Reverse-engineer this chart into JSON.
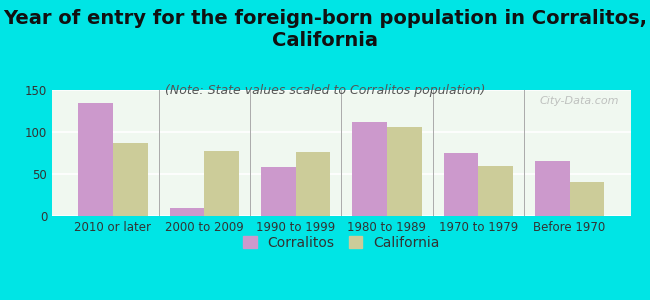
{
  "title": "Year of entry for the foreign-born population in Corralitos,\nCalifornia",
  "subtitle": "(Note: State values scaled to Corralitos population)",
  "categories": [
    "2010 or later",
    "2000 to 2009",
    "1990 to 1999",
    "1980 to 1989",
    "1970 to 1979",
    "Before 1970"
  ],
  "corralitos_values": [
    134,
    10,
    58,
    112,
    75,
    65
  ],
  "california_values": [
    87,
    77,
    76,
    106,
    59,
    40
  ],
  "corralitos_color": "#cc99cc",
  "california_color": "#cccc99",
  "background_color": "#00e5e5",
  "plot_bg_color_top": "#f0f8f0",
  "plot_bg_color_bottom": "#f8fff8",
  "ylim": [
    0,
    150
  ],
  "yticks": [
    0,
    50,
    100,
    150
  ],
  "bar_width": 0.38,
  "legend_labels": [
    "Corralitos",
    "California"
  ],
  "watermark": "City-Data.com",
  "title_fontsize": 14,
  "subtitle_fontsize": 9,
  "tick_fontsize": 8.5,
  "legend_fontsize": 10
}
